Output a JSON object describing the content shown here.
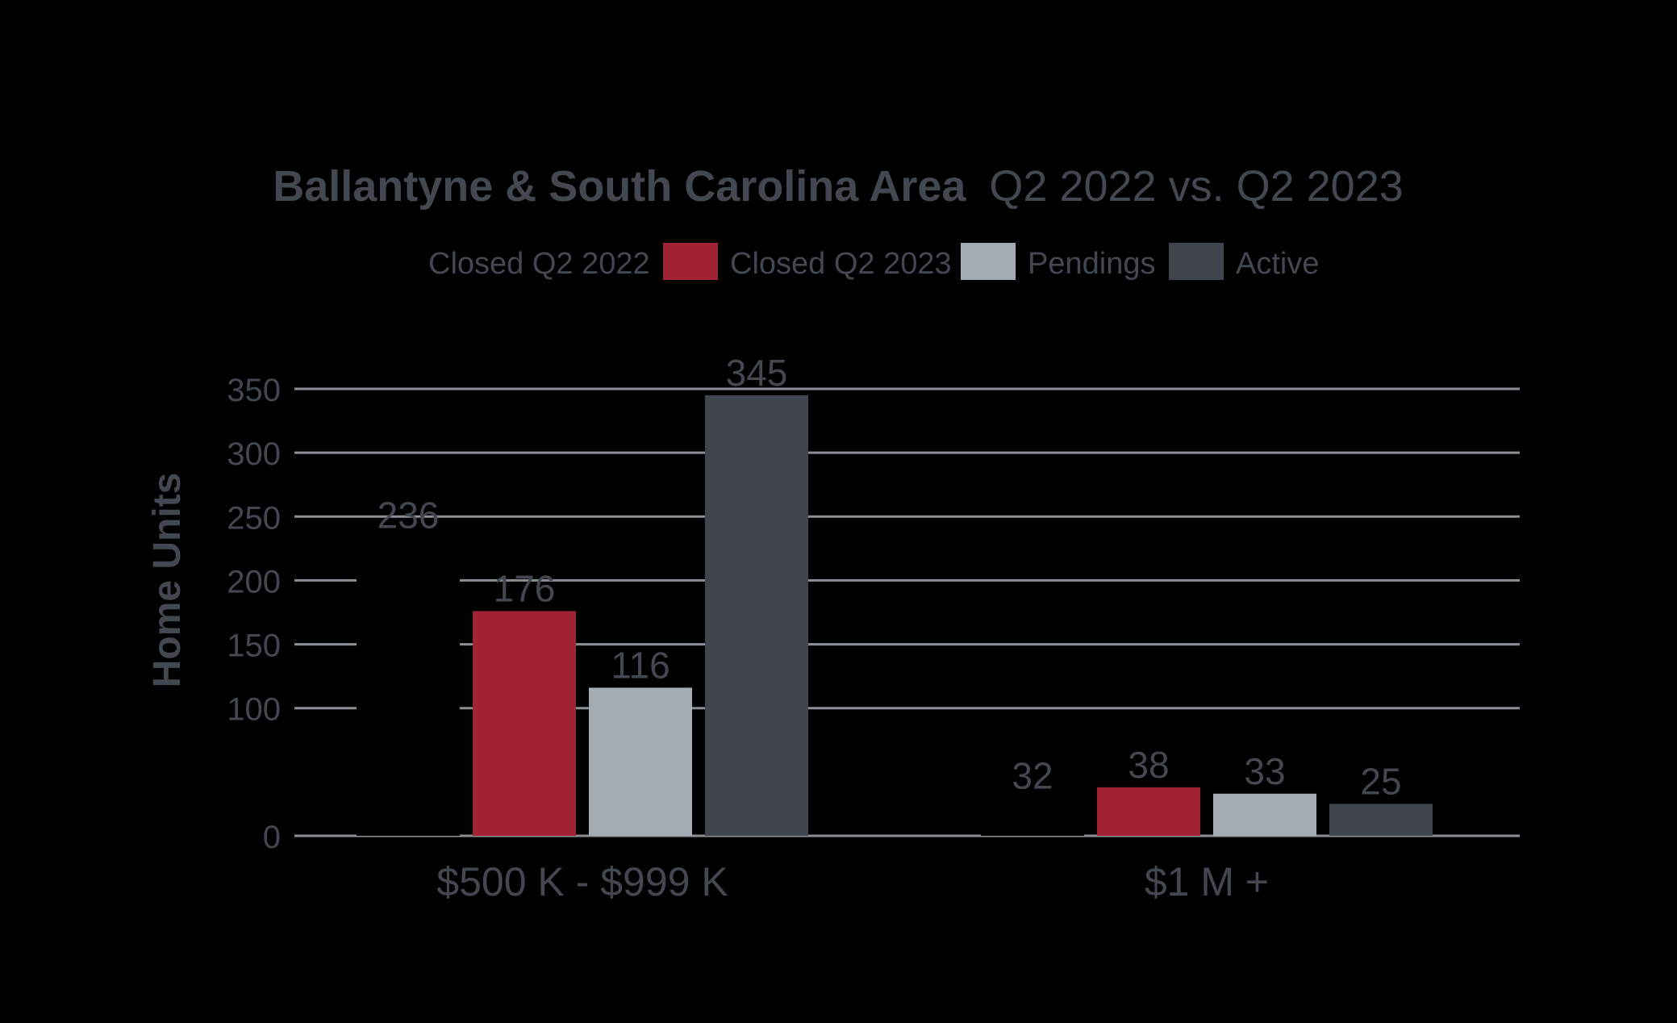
{
  "chart_data": {
    "type": "bar",
    "title_bold": "Ballantyne & South Carolina Area",
    "title_regular": "Q2 2022 vs. Q2 2023",
    "ylabel": "Home Units",
    "xlabel": "",
    "ylim": [
      0,
      350
    ],
    "yticks": [
      "0",
      "100",
      "150",
      "200",
      "250",
      "300",
      "350"
    ],
    "ytick_values": [
      0,
      100,
      150,
      200,
      250,
      300,
      350
    ],
    "categories": [
      "$500 K - $999 K",
      "$1 M +"
    ],
    "legend_position": "top-center",
    "grid": true,
    "series": [
      {
        "name": "Closed Q2 2022",
        "values": [
          236,
          32
        ],
        "labels": [
          "236",
          "32"
        ],
        "color": "#000000"
      },
      {
        "name": "Closed Q2 2023",
        "values": [
          176,
          38
        ],
        "labels": [
          "176",
          "38"
        ],
        "color": "#A02434"
      },
      {
        "name": "Pendings",
        "values": [
          116,
          33
        ],
        "labels": [
          "116",
          "33"
        ],
        "color": "#A3ABB3"
      },
      {
        "name": "Active",
        "values": [
          345,
          25
        ],
        "labels": [
          "345",
          "25"
        ],
        "color": "#41464E"
      }
    ],
    "colors": {
      "text": "#43474F",
      "grid": "#8C8F94",
      "background": "#000000"
    }
  }
}
